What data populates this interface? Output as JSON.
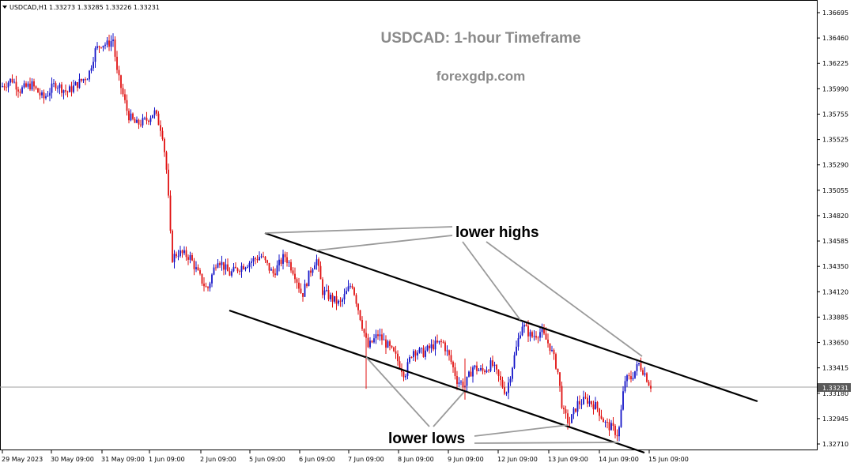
{
  "chart_data": {
    "type": "candlestick",
    "header": {
      "symbol": "USDCAD,H1",
      "ohlc": "1.33273 1.33285 1.33226 1.33231"
    },
    "title": "USDCAD: 1-hour Timeframe",
    "watermark": "forexgdp.com",
    "y_ticks": [
      "1.36695",
      "1.36460",
      "1.36225",
      "1.35990",
      "1.35755",
      "1.35525",
      "1.35290",
      "1.35055",
      "1.34820",
      "1.34585",
      "1.34350",
      "1.34120",
      "1.33885",
      "1.33650",
      "1.33415",
      "1.33180",
      "1.32945",
      "1.32710"
    ],
    "ylim": [
      1.3271,
      1.36695
    ],
    "x_ticks": [
      "29 May 2023",
      "30 May 09:00",
      "31 May 09:00",
      "1 Jun 09:00",
      "2 Jun 09:00",
      "5 Jun 09:00",
      "6 Jun 09:00",
      "7 Jun 09:00",
      "8 Jun 09:00",
      "9 Jun 09:00",
      "12 Jun 09:00",
      "13 Jun 09:00",
      "14 Jun 09:00",
      "15 Jun 09:00"
    ],
    "current_price": "1.33231",
    "colors": {
      "up": "#1414c8",
      "down": "#e01010",
      "trendline": "#000000",
      "pointer": "#9a9a9a",
      "price_line": "#a0a0a0"
    },
    "price_path": [
      [
        0,
        1.36
      ],
      [
        15,
        1.3608
      ],
      [
        25,
        1.3598
      ],
      [
        40,
        1.3603
      ],
      [
        55,
        1.359
      ],
      [
        70,
        1.3604
      ],
      [
        85,
        1.3596
      ],
      [
        100,
        1.3605
      ],
      [
        112,
        1.3612
      ],
      [
        120,
        1.3634
      ],
      [
        128,
        1.3641
      ],
      [
        136,
        1.364
      ],
      [
        143,
        1.3645
      ],
      [
        148,
        1.3614
      ],
      [
        155,
        1.3595
      ],
      [
        162,
        1.3575
      ],
      [
        172,
        1.3566
      ],
      [
        185,
        1.357
      ],
      [
        195,
        1.3578
      ],
      [
        205,
        1.356
      ],
      [
        210,
        1.353
      ],
      [
        214,
        1.3486
      ],
      [
        217,
        1.3442
      ],
      [
        225,
        1.3448
      ],
      [
        240,
        1.3444
      ],
      [
        252,
        1.3426
      ],
      [
        262,
        1.3413
      ],
      [
        275,
        1.3443
      ],
      [
        290,
        1.3428
      ],
      [
        305,
        1.3435
      ],
      [
        318,
        1.344
      ],
      [
        330,
        1.3445
      ],
      [
        345,
        1.3428
      ],
      [
        360,
        1.3445
      ],
      [
        372,
        1.343
      ],
      [
        382,
        1.3408
      ],
      [
        392,
        1.343
      ],
      [
        400,
        1.3443
      ],
      [
        408,
        1.3412
      ],
      [
        420,
        1.3405
      ],
      [
        430,
        1.34
      ],
      [
        445,
        1.342
      ],
      [
        455,
        1.339
      ],
      [
        465,
        1.336
      ],
      [
        478,
        1.3372
      ],
      [
        490,
        1.3362
      ],
      [
        500,
        1.3352
      ],
      [
        512,
        1.3335
      ],
      [
        522,
        1.3358
      ],
      [
        535,
        1.3355
      ],
      [
        548,
        1.3362
      ],
      [
        560,
        1.3365
      ],
      [
        570,
        1.3348
      ],
      [
        578,
        1.333
      ],
      [
        588,
        1.3325
      ],
      [
        598,
        1.3342
      ],
      [
        610,
        1.3338
      ],
      [
        622,
        1.3345
      ],
      [
        632,
        1.333
      ],
      [
        640,
        1.3318
      ],
      [
        650,
        1.335
      ],
      [
        660,
        1.3382
      ],
      [
        672,
        1.337
      ],
      [
        684,
        1.3375
      ],
      [
        695,
        1.3362
      ],
      [
        705,
        1.334
      ],
      [
        712,
        1.33
      ],
      [
        720,
        1.329
      ],
      [
        730,
        1.3308
      ],
      [
        742,
        1.3312
      ],
      [
        755,
        1.3305
      ],
      [
        765,
        1.329
      ],
      [
        775,
        1.3285
      ],
      [
        782,
        1.3279
      ],
      [
        790,
        1.333
      ],
      [
        798,
        1.3332
      ],
      [
        808,
        1.3345
      ],
      [
        815,
        1.3337
      ],
      [
        822,
        1.3325
      ]
    ],
    "annotations": {
      "lower_highs": "lower highs",
      "lower_lows": "lower lows"
    }
  }
}
